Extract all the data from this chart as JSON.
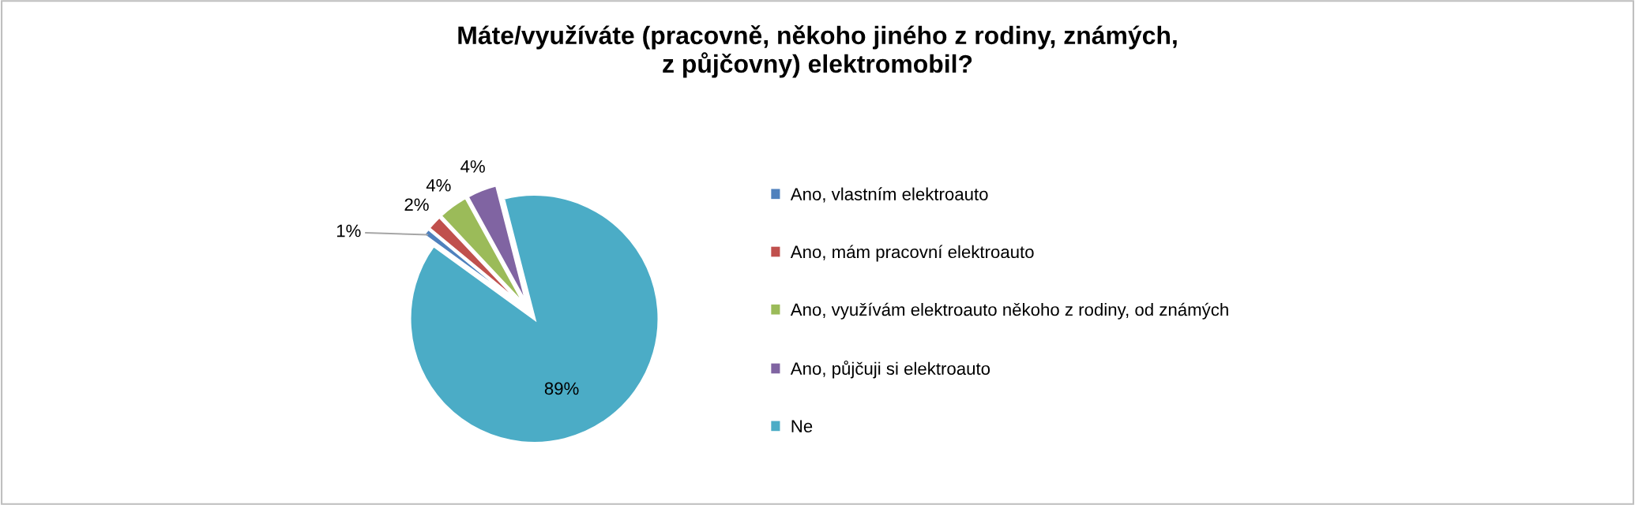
{
  "chart_data": {
    "type": "pie",
    "title": "Máte/využíváte (pracovně, někoho jiného z rodiny, známých,\nz půjčovny) elektromobil?",
    "categories": [
      "Ano, vlastním elektroauto",
      "Ano, mám pracovní elektroauto",
      "Ano, využívám elektroauto někoho z rodiny, od známých",
      "Ano, půjčuji si elektroauto",
      "Ne"
    ],
    "values": [
      1,
      2,
      4,
      4,
      89
    ],
    "value_labels": [
      "1%",
      "2%",
      "4%",
      "4%",
      "89%"
    ],
    "colors": [
      "#4f81bd",
      "#c0504d",
      "#9bbb59",
      "#8064a2",
      "#4bacc6"
    ],
    "legend": "right"
  }
}
